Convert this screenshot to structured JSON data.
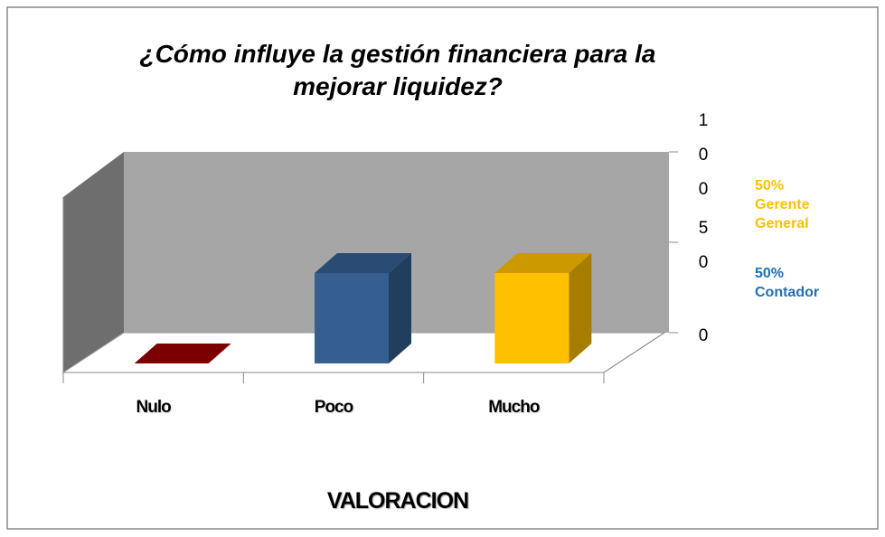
{
  "chart_data": {
    "type": "bar3d",
    "title": "¿Cómo influye la gestión financiera para la mejorar liquidez?",
    "x_label": "VALORACION",
    "categories": [
      "Nulo",
      "Poco",
      "Mucho"
    ],
    "values": [
      0,
      50,
      50
    ],
    "colors": [
      "#9b0000",
      "#355f91",
      "#ffc000"
    ],
    "ylim": [
      0,
      100
    ],
    "yticks": [
      0,
      50,
      100
    ],
    "annotations": [
      {
        "text": "50% Gerente General",
        "color": "#ffc000"
      },
      {
        "text": "50% Contador",
        "color": "#1f6fb4"
      }
    ]
  }
}
